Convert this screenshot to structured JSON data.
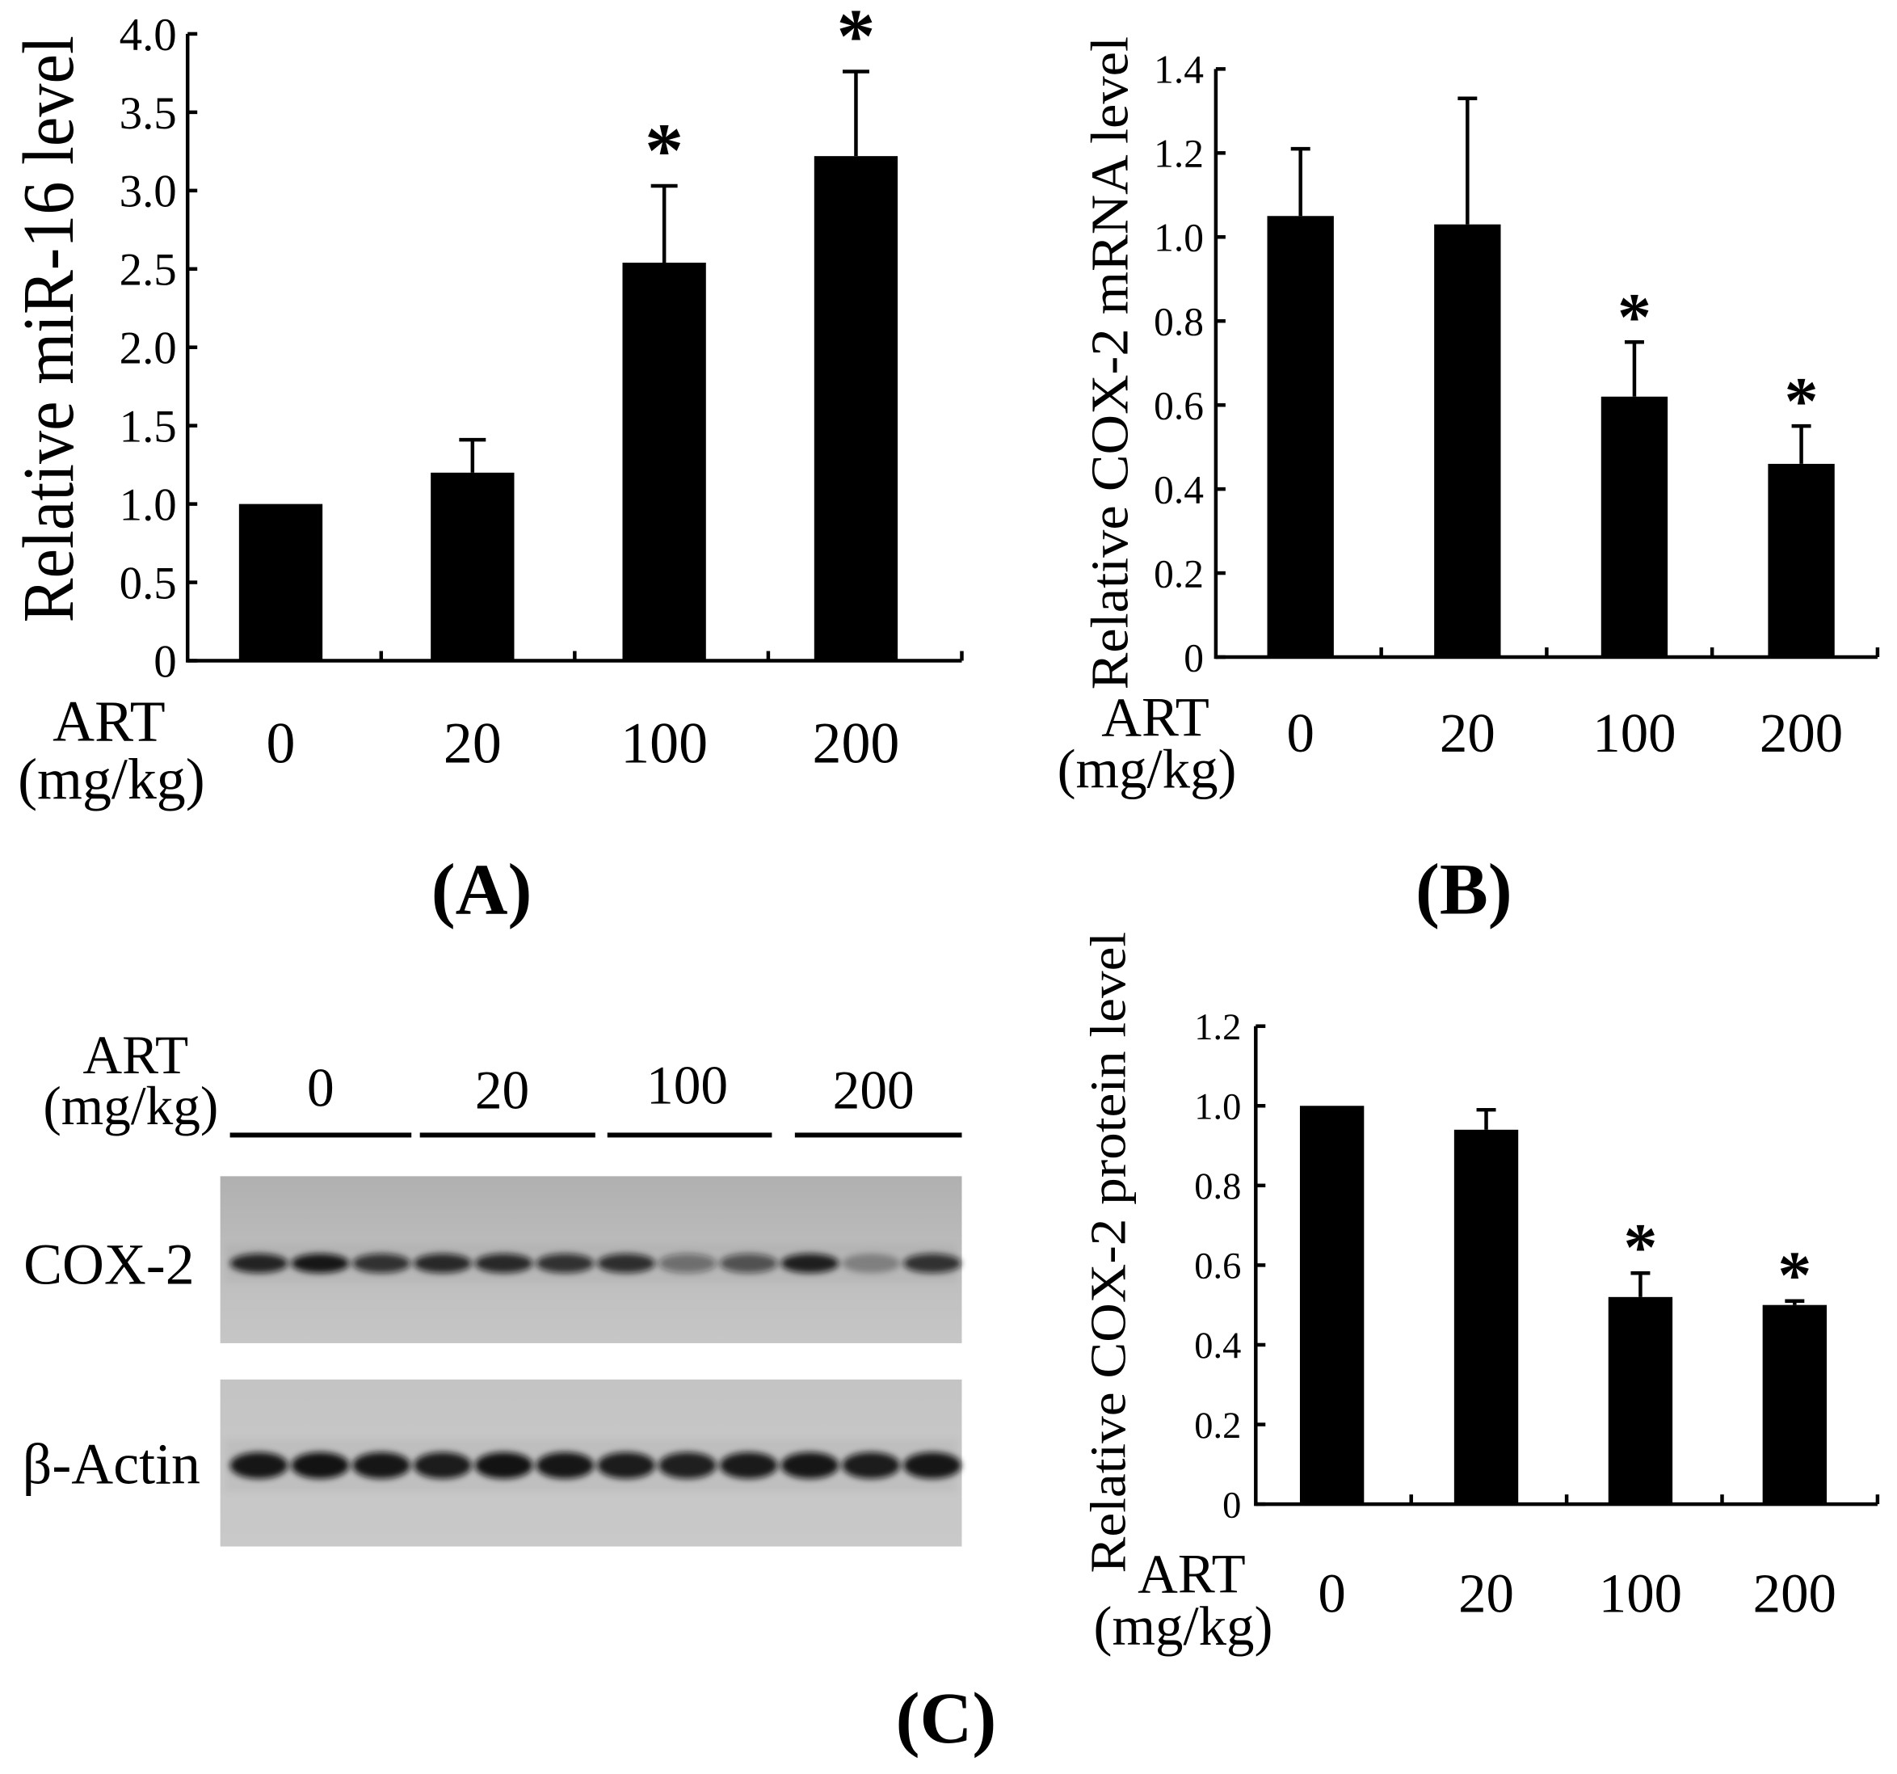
{
  "figure": {
    "panel_labels": {
      "a": "(A)",
      "b": "(B)",
      "c": "(C)"
    },
    "text_color": "#000000"
  },
  "chart_data": [
    {
      "id": "A",
      "type": "bar",
      "ylabel": "Relative miR-16 level",
      "xlabel_lines": [
        "ART",
        "(mg/kg)"
      ],
      "categories": [
        "0",
        "20",
        "100",
        "200"
      ],
      "values": [
        1.0,
        1.2,
        2.54,
        3.22
      ],
      "error_upper": [
        0.0,
        0.21,
        0.49,
        0.54
      ],
      "significance": [
        "",
        "",
        "*",
        "*"
      ],
      "yticks": [
        "0",
        "0.5",
        "1.0",
        "1.5",
        "2.0",
        "2.5",
        "3.0",
        "3.5",
        "4.0"
      ],
      "ylim": [
        0,
        4.0
      ],
      "grid": false,
      "bar_color": "#000000"
    },
    {
      "id": "B",
      "type": "bar",
      "ylabel": "Relative COX-2 mRNA level",
      "xlabel_lines": [
        "ART",
        "(mg/kg)"
      ],
      "categories": [
        "0",
        "20",
        "100",
        "200"
      ],
      "values": [
        1.05,
        1.03,
        0.62,
        0.46
      ],
      "error_upper": [
        0.16,
        0.3,
        0.13,
        0.09
      ],
      "significance": [
        "",
        "",
        "*",
        "*"
      ],
      "yticks": [
        "0",
        "0.2",
        "0.4",
        "0.6",
        "0.8",
        "1.0",
        "1.2",
        "1.4"
      ],
      "ylim": [
        0,
        1.4
      ],
      "grid": false,
      "bar_color": "#000000"
    },
    {
      "id": "C",
      "type": "bar",
      "ylabel": "Relative COX-2 protein level",
      "xlabel_lines": [
        "ART",
        "(mg/kg)"
      ],
      "categories": [
        "0",
        "20",
        "100",
        "200"
      ],
      "values": [
        1.0,
        0.94,
        0.52,
        0.5
      ],
      "error_upper": [
        0.0,
        0.05,
        0.06,
        0.01
      ],
      "significance": [
        "",
        "",
        "*",
        "*"
      ],
      "yticks": [
        "0",
        "0.2",
        "0.4",
        "0.6",
        "0.8",
        "1.0",
        "1.2"
      ],
      "ylim": [
        0,
        1.2
      ],
      "grid": false,
      "bar_color": "#000000"
    }
  ],
  "blot": {
    "art_label": "ART",
    "unit_label": "(mg/kg)",
    "doses": [
      "0",
      "20",
      "100",
      "200"
    ],
    "lanes_per_dose": 3,
    "rows": [
      {
        "label": "COX-2",
        "band_intensity": [
          0.88,
          0.95,
          0.8,
          0.85,
          0.85,
          0.8,
          0.82,
          0.45,
          0.62,
          0.9,
          0.3,
          0.8
        ]
      },
      {
        "label": "β-Actin",
        "band_intensity": [
          0.95,
          0.97,
          0.95,
          0.92,
          0.97,
          0.95,
          0.92,
          0.9,
          0.93,
          0.95,
          0.92,
          0.95
        ]
      }
    ]
  }
}
